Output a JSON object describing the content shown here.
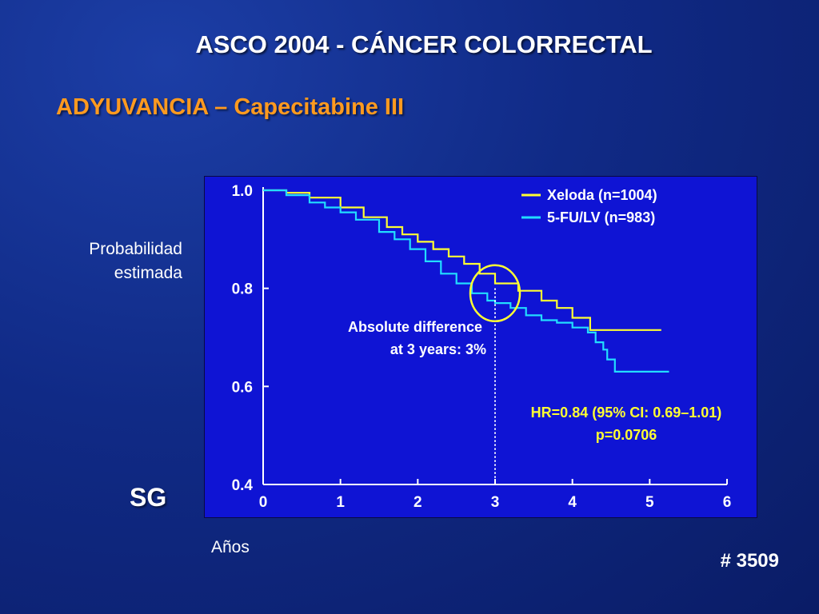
{
  "slide": {
    "title": "ASCO 2004 -  CÁNCER COLORRECTAL",
    "subtitle": "ADYUVANCIA – Capecitabine III",
    "y_label_lines": [
      "Probabilidad",
      "estimada"
    ],
    "section_label": "SG",
    "x_label": "Años",
    "abstract_number": "# 3509"
  },
  "colors": {
    "background": "#102a86",
    "chart_background": "#0f14d4",
    "subtitle": "#ff9a1f",
    "xeloda": "#ffff33",
    "fu_lv": "#22ddff",
    "hr_text": "#ffff33",
    "circle": "#ffff33"
  },
  "chart_data": {
    "type": "line",
    "step": true,
    "xlabel": "Años",
    "ylabel": "Probabilidad estimada",
    "xlim": [
      0,
      6
    ],
    "ylim": [
      0.4,
      1.0
    ],
    "x_ticks": [
      "0",
      "1",
      "2",
      "3",
      "4",
      "5",
      "6"
    ],
    "y_ticks": [
      "1.0",
      "0.8",
      "0.6",
      "0.4"
    ],
    "grid": false,
    "legend_position": "top-right",
    "series": [
      {
        "name": "Xeloda (n=1004)",
        "color": "#ffff33",
        "points": [
          [
            0,
            1.0
          ],
          [
            0.3,
            0.995
          ],
          [
            0.6,
            0.985
          ],
          [
            1.0,
            0.965
          ],
          [
            1.3,
            0.945
          ],
          [
            1.6,
            0.925
          ],
          [
            1.8,
            0.91
          ],
          [
            2.0,
            0.895
          ],
          [
            2.2,
            0.88
          ],
          [
            2.4,
            0.865
          ],
          [
            2.6,
            0.85
          ],
          [
            2.8,
            0.83
          ],
          [
            3.0,
            0.81
          ],
          [
            3.3,
            0.795
          ],
          [
            3.6,
            0.775
          ],
          [
            3.8,
            0.76
          ],
          [
            4.0,
            0.74
          ],
          [
            4.2,
            0.74
          ],
          [
            4.23,
            0.715
          ],
          [
            4.6,
            0.715
          ],
          [
            5.15,
            0.715
          ]
        ]
      },
      {
        "name": "5-FU/LV (n=983)",
        "color": "#22ddff",
        "points": [
          [
            0,
            1.0
          ],
          [
            0.3,
            0.99
          ],
          [
            0.6,
            0.975
          ],
          [
            0.8,
            0.965
          ],
          [
            1.0,
            0.955
          ],
          [
            1.2,
            0.94
          ],
          [
            1.5,
            0.915
          ],
          [
            1.7,
            0.9
          ],
          [
            1.9,
            0.88
          ],
          [
            2.1,
            0.855
          ],
          [
            2.3,
            0.83
          ],
          [
            2.5,
            0.81
          ],
          [
            2.7,
            0.79
          ],
          [
            2.9,
            0.775
          ],
          [
            3.0,
            0.77
          ],
          [
            3.2,
            0.76
          ],
          [
            3.4,
            0.745
          ],
          [
            3.6,
            0.735
          ],
          [
            3.8,
            0.73
          ],
          [
            4.0,
            0.72
          ],
          [
            4.2,
            0.71
          ],
          [
            4.3,
            0.69
          ],
          [
            4.4,
            0.675
          ],
          [
            4.45,
            0.655
          ],
          [
            4.55,
            0.635
          ],
          [
            4.55,
            0.63
          ],
          [
            4.8,
            0.63
          ],
          [
            5.25,
            0.63
          ]
        ]
      }
    ],
    "annotations": {
      "difference_line_x": 3,
      "difference_text": [
        "Absolute difference",
        "at 3 years: 3%"
      ],
      "hr_text": [
        "HR=0.84 (95% CI: 0.69–1.01)",
        "p=0.0706"
      ]
    }
  }
}
